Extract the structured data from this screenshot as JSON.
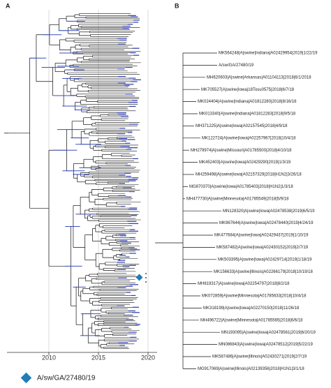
{
  "panel_a": {
    "label": "A",
    "axis_ticks": [
      "2010",
      "2015",
      "2020"
    ]
  },
  "panel_b": {
    "label": "B",
    "leaves": [
      "MK564248|A|swine|Indiana|A02429954|2019|1/22/19",
      "A/sw/GA/27480/19",
      "MH620603|A|swine|Arkansas|A01104113|2018|6/1/2018",
      "MK705527|A|swine|Iowa|18Tosu0575|2018|6/7/18",
      "MK024404|A|swine|Indiana|A01812280|2018|8/16/18",
      "MK013340|A|swine|Indiana|A01812283|2018|9/5/18",
      "MH371225|A|swine|Iowa|A02157545|2018|4/9/18",
      "MK122724|A|swine|Iowa|A02257967|2018|10/4/18",
      "MH279974|A|swine|Missouri|A01785500|2018|4/10/18",
      "MK452403|A|swine|Iowa|A02429290|2019|1/3/19",
      "MH259498|A|swine|Iowa|A02157329|2018|H1N2|3/26/18",
      "MG870370|A|swine|Iowa|A01785403|2018|H1N2|1/3/18",
      "MH477730|A|swine|Minnesota|A01785549|2018|5/9/18",
      "MN128320|A|swine|Iowa|A02478538|2019|6/5/19",
      "MK967644|A|swine|Iowa|A02478440|2019|4/24/19",
      "MK477684|A|swine|Iowa|A02429437|2019|1/10/19",
      "MK587482|A|swine|Iowa|A02430152|2019|2/7/19",
      "MK503395|A|swine|Iowa|A02429714|2019|1/18/19",
      "MK156633|A|swine|Illinois|A02266179|2018|10/19/18",
      "MH819317|A|swine|Iowa|A02254797|2018|8/2/18",
      "MK072859|A|swine|Minnesota|A01785633|2018|10/4/18",
      "MK318199|A|swine|Iowa|A02270150|2018|11/26/18",
      "MH496722|A|swine|Minnesota|A01785565|2018|6/6/18",
      "MN193095|A|swine|Iowa|A02478561|2019|6/20/19",
      "MN086843|A|swine|Iowa|A02478512|2019|5/22/19",
      "MK587486|A|swine|Illinois|A02430271|2019|2/7/19",
      "MG917069|A|swine|Illinois|A02139356|2018|H1N1|3/1/18"
    ]
  },
  "legend": {
    "label": "A/sw/GA/27480/19"
  }
}
